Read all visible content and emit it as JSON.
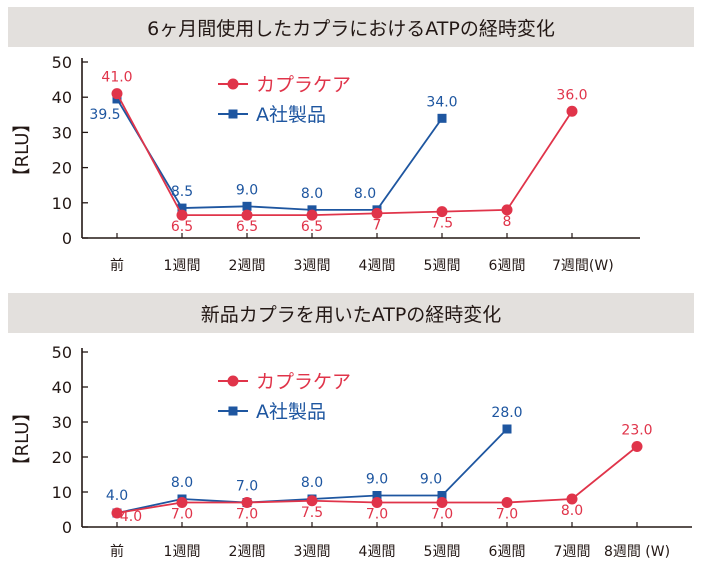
{
  "chart_data": [
    {
      "type": "line",
      "title": "6ヶ月間使用したカプラにおけるATPの経時変化",
      "ylabel": "【RLU】",
      "ylim": [
        0,
        50
      ],
      "yticks": [
        0,
        10,
        20,
        30,
        40,
        50
      ],
      "grid": false,
      "legend": "top-center",
      "categories": [
        "前",
        "1週間",
        "2週間",
        "3週間",
        "4週間",
        "5週間",
        "6週間",
        "7週間(W)"
      ],
      "series": [
        {
          "name": "カプラケア",
          "marker": "circle",
          "color": "#e0344a",
          "values": [
            41.0,
            6.5,
            6.5,
            6.5,
            7,
            7.5,
            8,
            36.0
          ],
          "labels": [
            "41.0",
            "6.5",
            "6.5",
            "6.5",
            "7",
            "7.5",
            "8",
            "36.0"
          ]
        },
        {
          "name": "A社製品",
          "marker": "square",
          "color": "#1e56a0",
          "values": [
            39.5,
            8.5,
            9.0,
            8.0,
            8.0,
            34.0,
            null,
            null
          ],
          "labels": [
            "39.5",
            "8.5",
            "9.0",
            "8.0",
            "8.0",
            "34.0",
            "",
            ""
          ]
        }
      ]
    },
    {
      "type": "line",
      "title": "新品カプラを用いたATPの経時変化",
      "ylabel": "【RLU】",
      "ylim": [
        0,
        50
      ],
      "yticks": [
        0,
        10,
        20,
        30,
        40,
        50
      ],
      "grid": false,
      "legend": "top-center",
      "categories": [
        "前",
        "1週間",
        "2週間",
        "3週間",
        "4週間",
        "5週間",
        "6週間",
        "7週間",
        "8週間 (W)"
      ],
      "series": [
        {
          "name": "カプラケア",
          "marker": "circle",
          "color": "#e0344a",
          "values": [
            4.0,
            7.0,
            7.0,
            7.5,
            7.0,
            7.0,
            7.0,
            8.0,
            23.0
          ],
          "labels": [
            "4.0",
            "7.0",
            "7.0",
            "7.5",
            "7.0",
            "7.0",
            "7.0",
            "8.0",
            "23.0"
          ]
        },
        {
          "name": "A社製品",
          "marker": "square",
          "color": "#1e56a0",
          "values": [
            4.0,
            8.0,
            7.0,
            8.0,
            9.0,
            9.0,
            28.0,
            null,
            null
          ],
          "labels": [
            "4.0",
            "8.0",
            "7.0",
            "8.0",
            "9.0",
            "9.0",
            "28.0",
            "",
            ""
          ]
        }
      ]
    }
  ]
}
